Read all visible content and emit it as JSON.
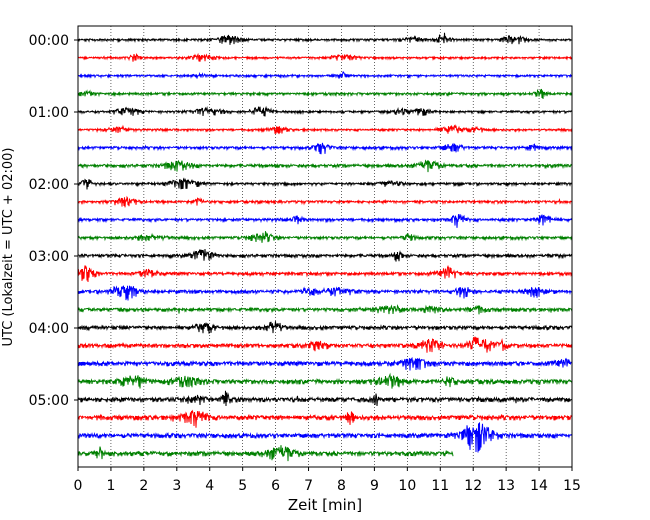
{
  "chart_data": {
    "type": "line",
    "subtype": "seismogram-helicorder",
    "xlabel": "Zeit  [min]",
    "ylabel": "UTC (Lokalzeit = UTC + 02:00)",
    "xlim": [
      0,
      15
    ],
    "x_ticks": [
      "0",
      "1",
      "2",
      "3",
      "4",
      "5",
      "6",
      "7",
      "8",
      "9",
      "10",
      "11",
      "12",
      "13",
      "14",
      "15"
    ],
    "y_tick_labels": [
      "00:00",
      "01:00",
      "02:00",
      "03:00",
      "04:00",
      "05:00"
    ],
    "row_interval_min": 15,
    "row_colors": [
      "#000000",
      "#ff0000",
      "#0000ff",
      "#008000"
    ],
    "grid": "vertical-dotted",
    "rows": [
      {
        "start": "00:00",
        "end_min": 15,
        "amplitude": 0.18
      },
      {
        "start": "00:15",
        "end_min": 15,
        "amplitude": 0.16
      },
      {
        "start": "00:30",
        "end_min": 15,
        "amplitude": 0.18
      },
      {
        "start": "00:45",
        "end_min": 15,
        "amplitude": 0.2
      },
      {
        "start": "01:00",
        "end_min": 15,
        "amplitude": 0.18
      },
      {
        "start": "01:15",
        "end_min": 15,
        "amplitude": 0.17
      },
      {
        "start": "01:30",
        "end_min": 15,
        "amplitude": 0.22
      },
      {
        "start": "01:45",
        "end_min": 15,
        "amplitude": 0.26
      },
      {
        "start": "02:00",
        "end_min": 15,
        "amplitude": 0.2
      },
      {
        "start": "02:15",
        "end_min": 15,
        "amplitude": 0.2
      },
      {
        "start": "02:30",
        "end_min": 15,
        "amplitude": 0.22
      },
      {
        "start": "02:45",
        "end_min": 15,
        "amplitude": 0.22
      },
      {
        "start": "03:00",
        "end_min": 15,
        "amplitude": 0.26
      },
      {
        "start": "03:15",
        "end_min": 15,
        "amplitude": 0.26
      },
      {
        "start": "03:30",
        "end_min": 15,
        "amplitude": 0.28
      },
      {
        "start": "03:45",
        "end_min": 15,
        "amplitude": 0.28
      },
      {
        "start": "04:00",
        "end_min": 15,
        "amplitude": 0.3
      },
      {
        "start": "04:15",
        "end_min": 15,
        "amplitude": 0.32
      },
      {
        "start": "04:30",
        "end_min": 15,
        "amplitude": 0.36
      },
      {
        "start": "04:45",
        "end_min": 15,
        "amplitude": 0.36
      },
      {
        "start": "05:00",
        "end_min": 15,
        "amplitude": 0.36
      },
      {
        "start": "05:15",
        "end_min": 15,
        "amplitude": 0.38
      },
      {
        "start": "05:30",
        "end_min": 15,
        "amplitude": 0.36
      },
      {
        "start": "05:45",
        "end_min": 11.4,
        "amplitude": 0.36
      }
    ]
  }
}
